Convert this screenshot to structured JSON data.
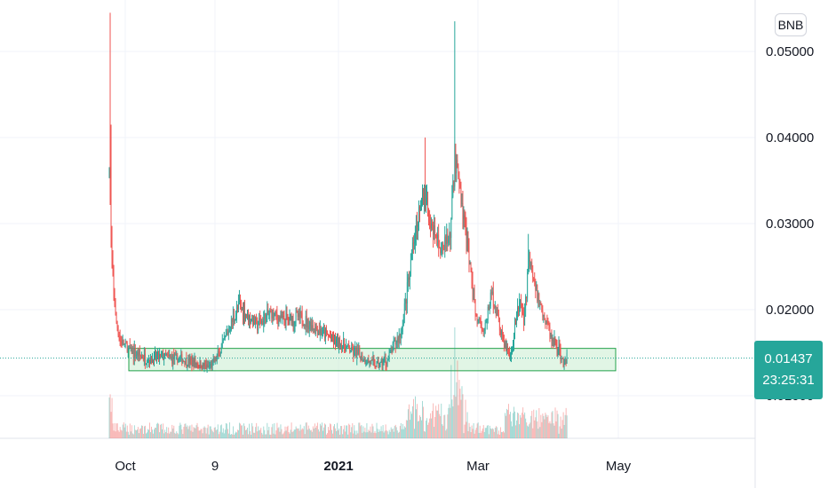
{
  "unit_label": "BNB",
  "last_price": "0.01437",
  "countdown": "23:25:31",
  "colors": {
    "up": "#26a69a",
    "down": "#ef5350",
    "zone_border": "#22a14a",
    "zone_fill": "#c8ecd0"
  },
  "chart_data": {
    "type": "candlestick",
    "y_ticks": [
      "0.05000",
      "0.04000",
      "0.03000",
      "0.02000",
      "0.01000"
    ],
    "x_ticks": [
      {
        "label": "Oct",
        "bold": false
      },
      {
        "label": "9",
        "bold": false
      },
      {
        "label": "2021",
        "bold": true
      },
      {
        "label": "Mar",
        "bold": false
      },
      {
        "label": "May",
        "bold": false
      }
    ],
    "ylim": [
      0.0045,
      0.0545
    ],
    "current_price": 0.01437,
    "support_zone": {
      "low": 0.0129,
      "high": 0.0155
    },
    "price_path": [
      [
        0,
        0.0355
      ],
      [
        3,
        0.026
      ],
      [
        7,
        0.019
      ],
      [
        12,
        0.0165
      ],
      [
        20,
        0.0155
      ],
      [
        30,
        0.0148
      ],
      [
        45,
        0.0142
      ],
      [
        60,
        0.0146
      ],
      [
        80,
        0.0142
      ],
      [
        95,
        0.0138
      ],
      [
        110,
        0.0133
      ],
      [
        118,
        0.014
      ],
      [
        125,
        0.0155
      ],
      [
        135,
        0.0182
      ],
      [
        145,
        0.0205
      ],
      [
        155,
        0.0192
      ],
      [
        165,
        0.0182
      ],
      [
        180,
        0.0196
      ],
      [
        195,
        0.0188
      ],
      [
        210,
        0.0192
      ],
      [
        225,
        0.0182
      ],
      [
        240,
        0.0172
      ],
      [
        255,
        0.0162
      ],
      [
        270,
        0.0152
      ],
      [
        285,
        0.0142
      ],
      [
        298,
        0.0135
      ],
      [
        310,
        0.0142
      ],
      [
        318,
        0.016
      ],
      [
        325,
        0.0172
      ],
      [
        333,
        0.023
      ],
      [
        342,
        0.031
      ],
      [
        352,
        0.033
      ],
      [
        360,
        0.029
      ],
      [
        372,
        0.027
      ],
      [
        380,
        0.029
      ],
      [
        385,
        0.0375
      ],
      [
        392,
        0.033
      ],
      [
        400,
        0.027
      ],
      [
        408,
        0.02
      ],
      [
        418,
        0.0175
      ],
      [
        426,
        0.022
      ],
      [
        432,
        0.0195
      ],
      [
        440,
        0.016
      ],
      [
        448,
        0.0145
      ],
      [
        456,
        0.021
      ],
      [
        462,
        0.019
      ],
      [
        468,
        0.026
      ],
      [
        476,
        0.022
      ],
      [
        484,
        0.0195
      ],
      [
        492,
        0.017
      ],
      [
        500,
        0.0155
      ],
      [
        506,
        0.0138
      ],
      [
        510,
        0.0143
      ]
    ],
    "wick_spikes": [
      [
        1,
        0.0545
      ],
      [
        2,
        0.0415
      ],
      [
        385,
        0.0535
      ],
      [
        352,
        0.04
      ],
      [
        467,
        0.0288
      ]
    ]
  }
}
